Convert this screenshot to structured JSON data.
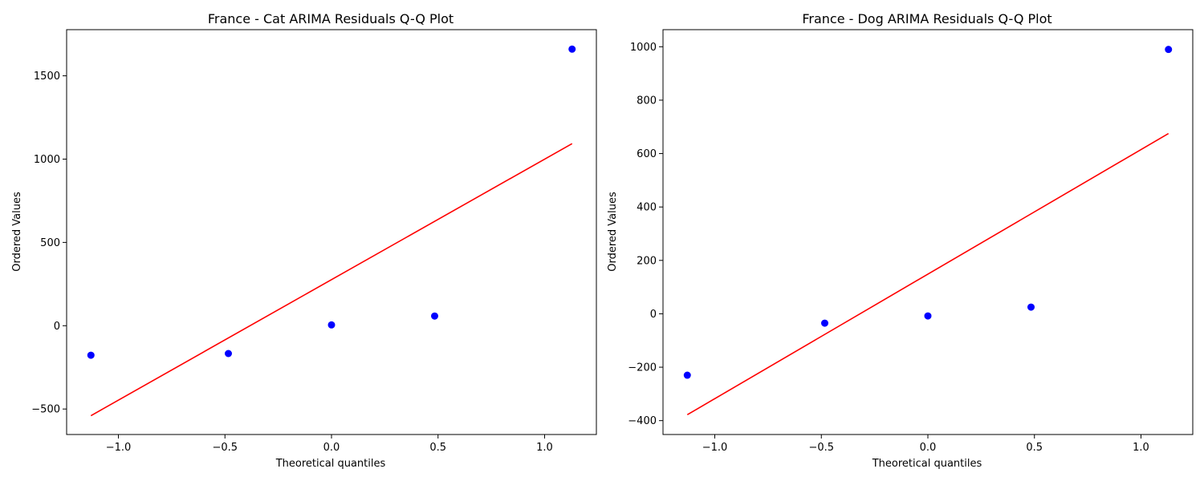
{
  "chart_data": [
    {
      "type": "scatter",
      "title": "France - Cat ARIMA Residuals Q-Q Plot",
      "xlabel": "Theoretical quantiles",
      "ylabel": "Ordered Values",
      "xlim": [
        -1.243,
        1.243
      ],
      "ylim": [
        -653,
        1777
      ],
      "xticks": [
        -1.0,
        -0.5,
        0.0,
        0.5,
        1.0
      ],
      "xtick_labels": [
        "−1.0",
        "−0.5",
        "0.0",
        "0.5",
        "1.0"
      ],
      "yticks": [
        -500,
        0,
        500,
        1000,
        1500
      ],
      "ytick_labels": [
        "−500",
        "0",
        "500",
        "1000",
        "1500"
      ],
      "grid": false,
      "series": [
        {
          "kind": "points",
          "color": "#0000ff",
          "x": [
            -1.129,
            -0.484,
            0.0,
            0.484,
            1.129
          ],
          "y": [
            -177,
            -167,
            5,
            58,
            1660
          ]
        },
        {
          "kind": "fit-line",
          "color": "#ff0000",
          "x": [
            -1.129,
            1.129
          ],
          "y": [
            -540,
            1093
          ]
        }
      ]
    },
    {
      "type": "scatter",
      "title": "France - Dog ARIMA Residuals Q-Q Plot",
      "xlabel": "Theoretical quantiles",
      "ylabel": "Ordered Values",
      "xlim": [
        -1.243,
        1.243
      ],
      "ylim": [
        -452,
        1064
      ],
      "xticks": [
        -1.0,
        -0.5,
        0.0,
        0.5,
        1.0
      ],
      "xtick_labels": [
        "−1.0",
        "−0.5",
        "0.0",
        "0.5",
        "1.0"
      ],
      "yticks": [
        -400,
        -200,
        0,
        200,
        400,
        600,
        800,
        1000
      ],
      "ytick_labels": [
        "−400",
        "−200",
        "0",
        "200",
        "400",
        "600",
        "800",
        "1000"
      ],
      "grid": false,
      "series": [
        {
          "kind": "points",
          "color": "#0000ff",
          "x": [
            -1.129,
            -0.484,
            0.0,
            0.484,
            1.129
          ],
          "y": [
            -230,
            -35,
            -8,
            25,
            990
          ]
        },
        {
          "kind": "fit-line",
          "color": "#ff0000",
          "x": [
            -1.129,
            1.129
          ],
          "y": [
            -378,
            675
          ]
        }
      ]
    }
  ]
}
